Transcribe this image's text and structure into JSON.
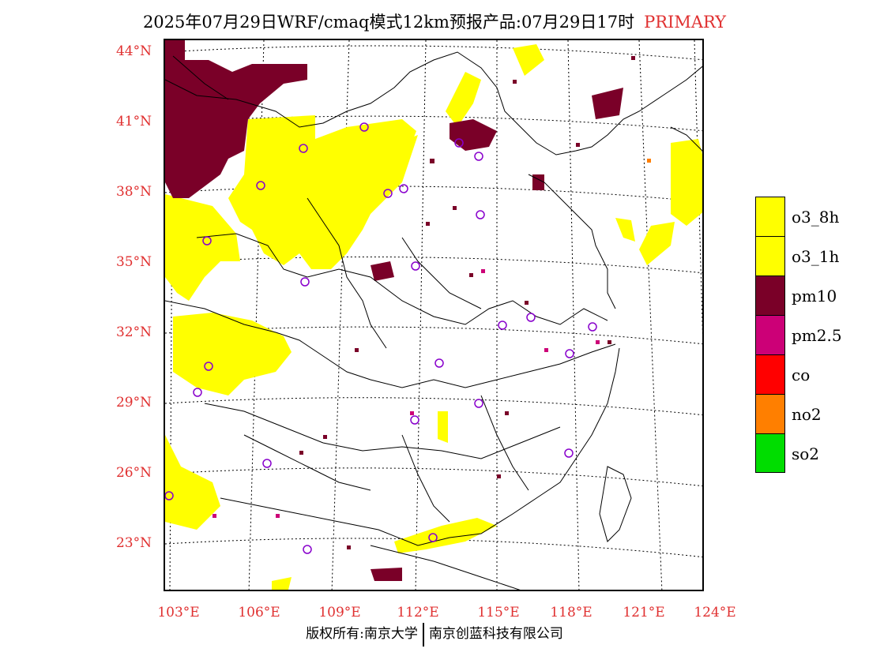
{
  "title": {
    "text": "2025年07月29日WRF/cmaq模式12km预报产品:07月29日17时",
    "tag": "PRIMARY"
  },
  "axes": {
    "lat_labels": [
      "44°N",
      "41°N",
      "38°N",
      "35°N",
      "32°N",
      "29°N",
      "26°N",
      "23°N"
    ],
    "lon_labels": [
      "103°E",
      "106°E",
      "109°E",
      "112°E",
      "115°E",
      "118°E",
      "121°E",
      "124°E"
    ]
  },
  "legend": [
    {
      "label": "o3_8h",
      "color": "#ffff00"
    },
    {
      "label": "o3_1h",
      "color": "#ffff00"
    },
    {
      "label": "pm10",
      "color": "#7a0028"
    },
    {
      "label": "pm2.5",
      "color": "#cc0077"
    },
    {
      "label": "co",
      "color": "#ff0000"
    },
    {
      "label": "no2",
      "color": "#ff7f00"
    },
    {
      "label": "so2",
      "color": "#00dd00"
    }
  ],
  "colors": {
    "axis_label": "#e03030",
    "pollution_yellow": "#ffff00",
    "pollution_maroon": "#7a0028",
    "pollution_magenta": "#cc0077",
    "station_marker": "#8800cc"
  },
  "footer": {
    "left": "版权所有:南京大学",
    "right": "南京创蓝科技有限公司"
  }
}
